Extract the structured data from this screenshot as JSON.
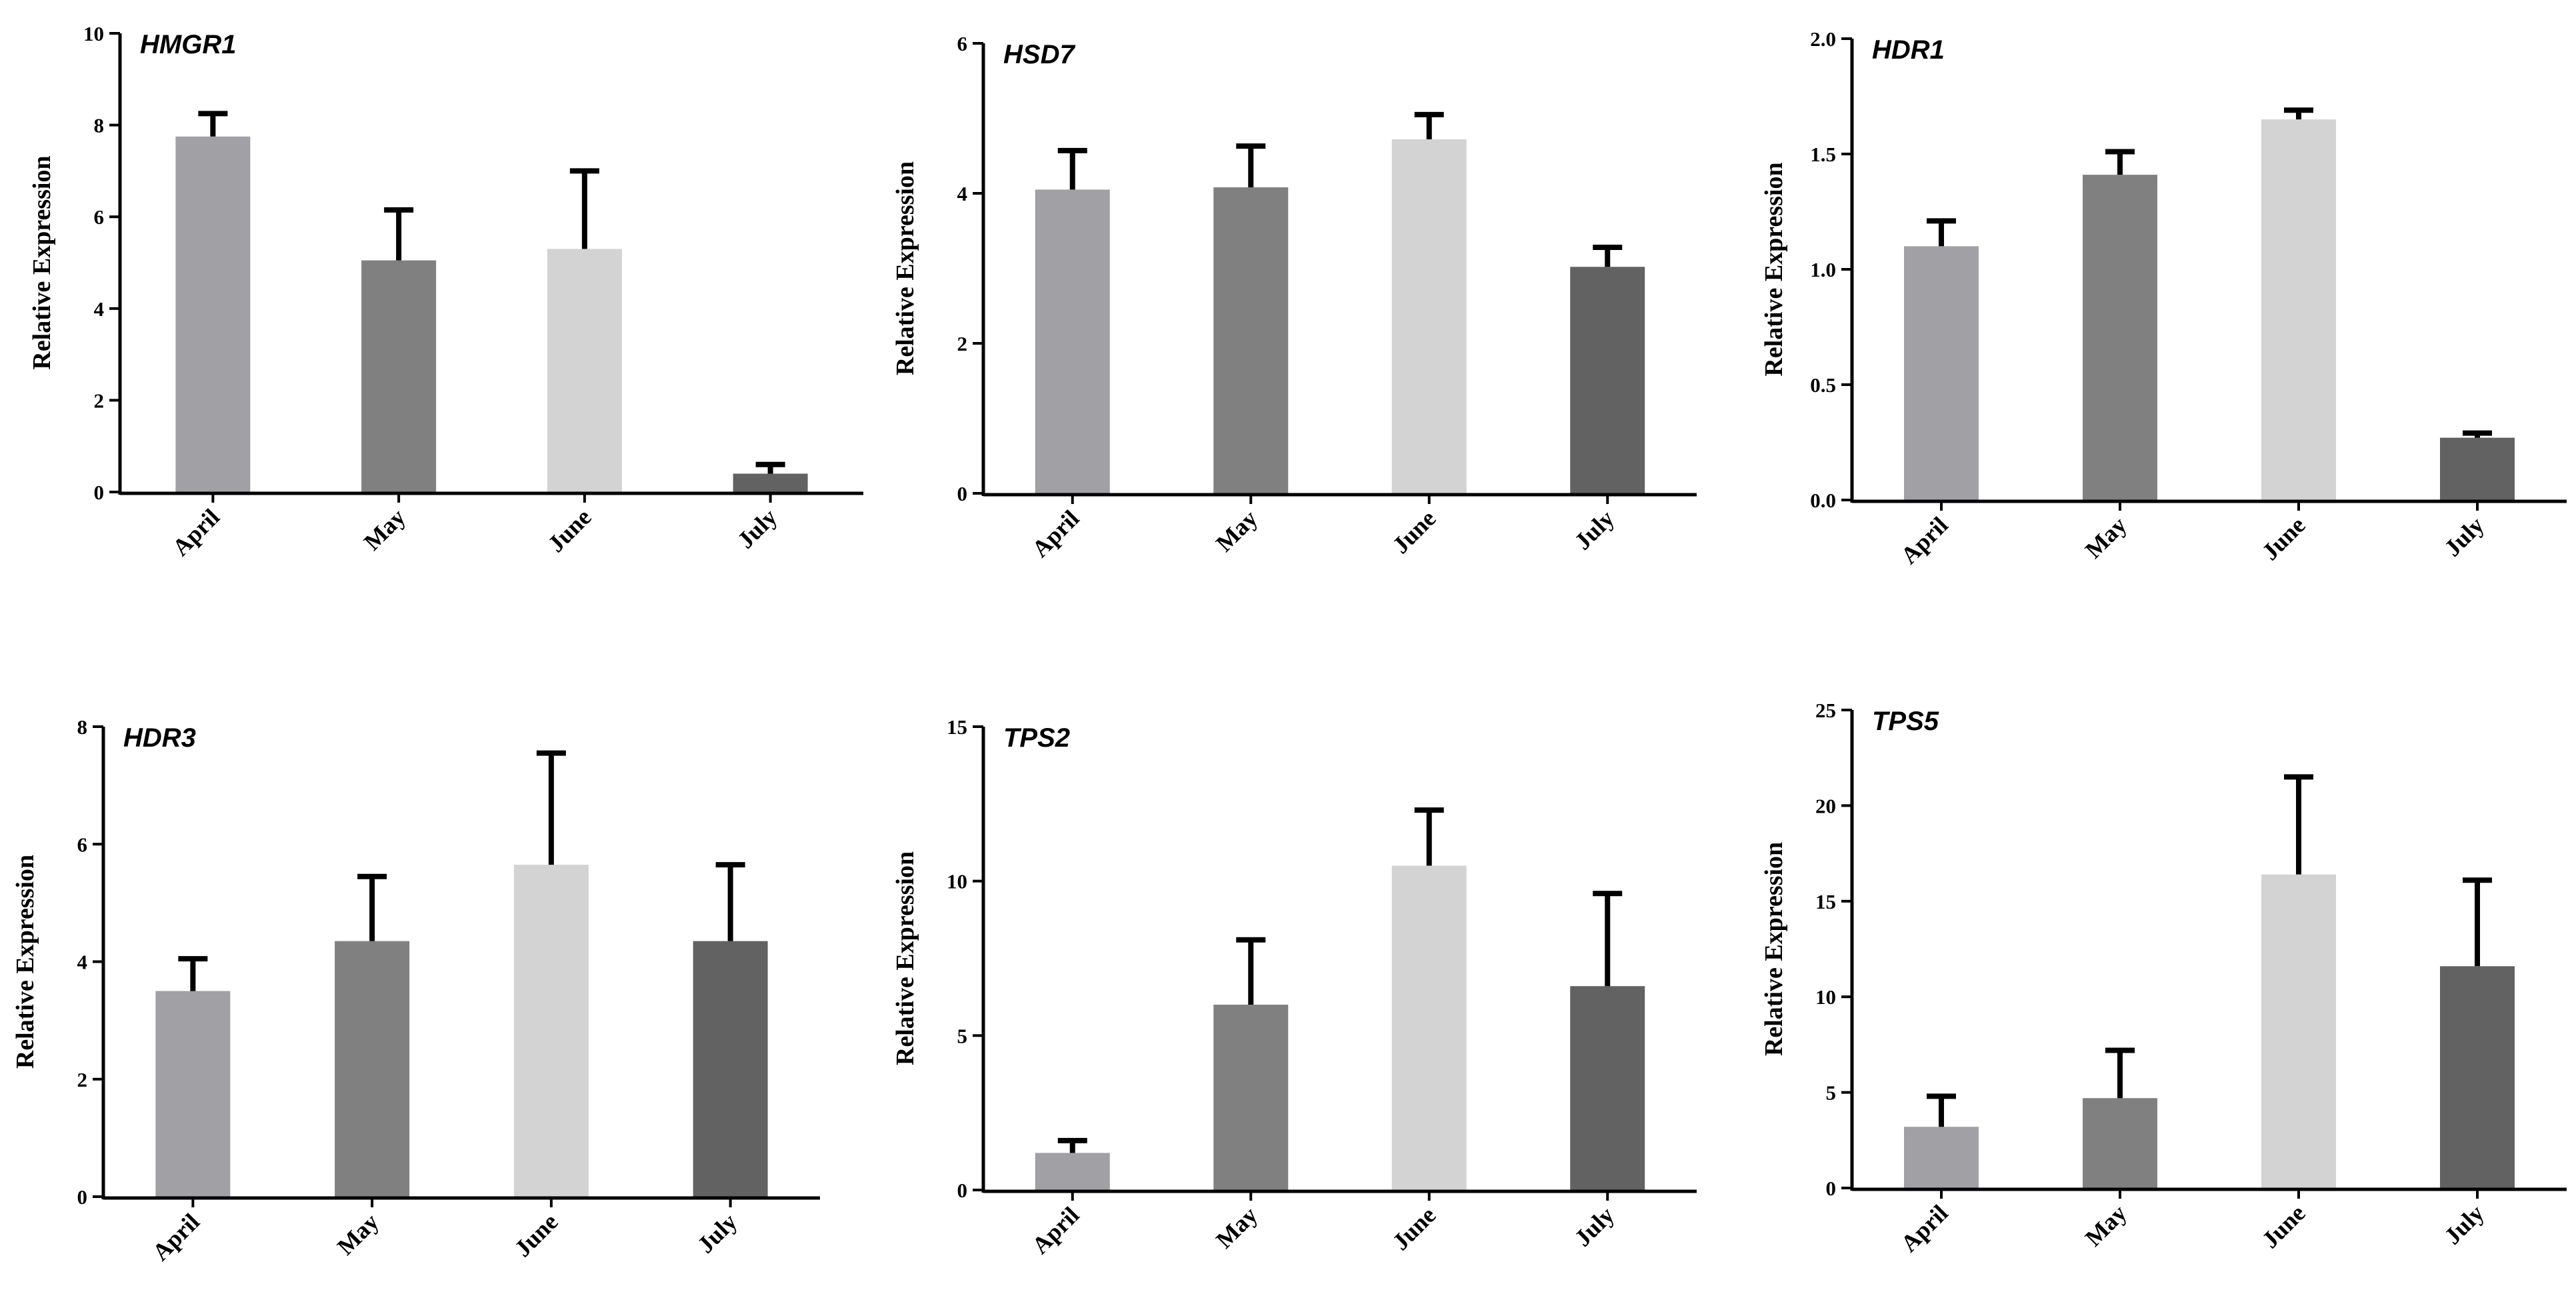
{
  "chart_data": [
    {
      "type": "bar",
      "title": "HMGR1",
      "ylabel": "Relative Expression",
      "xlabel": "",
      "categories": [
        "April",
        "May",
        "June",
        "July"
      ],
      "values": [
        7.75,
        5.05,
        5.3,
        0.4
      ],
      "errors": [
        0.5,
        1.1,
        1.7,
        0.2
      ],
      "ylim": [
        0,
        10
      ],
      "yticks": [
        "0",
        "2",
        "4",
        "6",
        "8",
        "10"
      ],
      "bar_colors": [
        "#a0a0a5",
        "#808080",
        "#d3d3d3",
        "#626262"
      ]
    },
    {
      "type": "bar",
      "title": "HSD7",
      "ylabel": "Relative Expression",
      "xlabel": "",
      "categories": [
        "April",
        "May",
        "June",
        "July"
      ],
      "values": [
        4.05,
        4.08,
        4.72,
        3.02
      ],
      "errors": [
        0.52,
        0.55,
        0.33,
        0.26
      ],
      "ylim": [
        0,
        6
      ],
      "yticks": [
        "0",
        "2",
        "4",
        "6"
      ],
      "bar_colors": [
        "#a0a0a5",
        "#808080",
        "#d3d3d3",
        "#626262"
      ]
    },
    {
      "type": "bar",
      "title": "HDR1",
      "ylabel": "Relative Expression",
      "xlabel": "",
      "categories": [
        "April",
        "May",
        "June",
        "July"
      ],
      "values": [
        1.1,
        1.41,
        1.65,
        0.27
      ],
      "errors": [
        0.11,
        0.1,
        0.04,
        0.02
      ],
      "ylim": [
        0,
        2
      ],
      "yticks": [
        "0.0",
        "0.5",
        "1.0",
        "1.5",
        "2.0"
      ],
      "bar_colors": [
        "#a0a0a5",
        "#808080",
        "#d3d3d3",
        "#626262"
      ]
    },
    {
      "type": "bar",
      "title": "HDR3",
      "ylabel": "Relative Expression",
      "xlabel": "",
      "categories": [
        "April",
        "May",
        "June",
        "July"
      ],
      "values": [
        3.5,
        4.35,
        5.65,
        4.35
      ],
      "errors": [
        0.55,
        1.1,
        1.9,
        1.3
      ],
      "ylim": [
        0,
        8
      ],
      "yticks": [
        "0",
        "2",
        "4",
        "6",
        "8"
      ],
      "bar_colors": [
        "#a0a0a5",
        "#808080",
        "#d3d3d3",
        "#626262"
      ]
    },
    {
      "type": "bar",
      "title": "TPS2",
      "ylabel": "Relative Expression",
      "xlabel": "",
      "categories": [
        "April",
        "May",
        "June",
        "July"
      ],
      "values": [
        1.2,
        6.0,
        10.5,
        6.6
      ],
      "errors": [
        0.4,
        2.1,
        1.8,
        3.0
      ],
      "ylim": [
        0,
        15
      ],
      "yticks": [
        "0",
        "5",
        "10",
        "15"
      ],
      "bar_colors": [
        "#a0a0a5",
        "#808080",
        "#d3d3d3",
        "#626262"
      ]
    },
    {
      "type": "bar",
      "title": "TPS5",
      "ylabel": "Relative Expression",
      "xlabel": "",
      "categories": [
        "April",
        "May",
        "June",
        "July"
      ],
      "values": [
        3.2,
        4.7,
        16.4,
        11.6
      ],
      "errors": [
        1.6,
        2.5,
        5.1,
        4.5
      ],
      "ylim": [
        0,
        25
      ],
      "yticks": [
        "0",
        "5",
        "10",
        "15",
        "20",
        "25"
      ],
      "bar_colors": [
        "#a0a0a5",
        "#808080",
        "#d3d3d3",
        "#626262"
      ]
    }
  ]
}
